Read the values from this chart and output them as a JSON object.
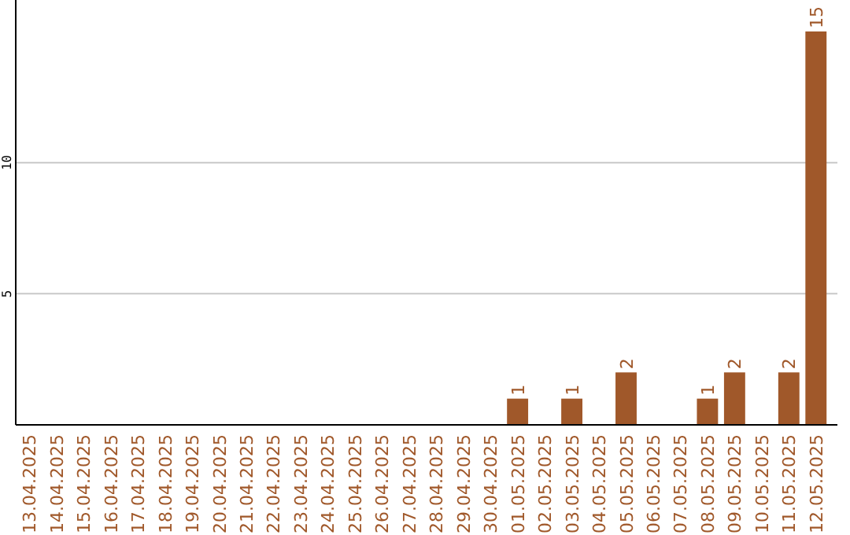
{
  "chart_data": {
    "type": "bar",
    "categories": [
      "13.04.2025",
      "14.04.2025",
      "15.04.2025",
      "16.04.2025",
      "17.04.2025",
      "18.04.2025",
      "19.04.2025",
      "20.04.2025",
      "21.04.2025",
      "22.04.2025",
      "23.04.2025",
      "24.04.2025",
      "25.04.2025",
      "26.04.2025",
      "27.04.2025",
      "28.04.2025",
      "29.04.2025",
      "30.04.2025",
      "01.05.2025",
      "02.05.2025",
      "03.05.2025",
      "04.05.2025",
      "05.05.2025",
      "06.05.2025",
      "07.05.2025",
      "08.05.2025",
      "09.05.2025",
      "10.05.2025",
      "11.05.2025",
      "12.05.2025"
    ],
    "values": [
      0,
      0,
      0,
      0,
      0,
      0,
      0,
      0,
      0,
      0,
      0,
      0,
      0,
      0,
      0,
      0,
      0,
      0,
      1,
      0,
      1,
      0,
      2,
      0,
      0,
      1,
      2,
      0,
      2,
      15
    ],
    "value_labels": [
      null,
      null,
      null,
      null,
      null,
      null,
      null,
      null,
      null,
      null,
      null,
      null,
      null,
      null,
      null,
      null,
      null,
      null,
      "1",
      null,
      "1",
      null,
      "2",
      null,
      null,
      "1",
      "2",
      null,
      "2",
      "15"
    ],
    "color": "#a0582a",
    "ylim": [
      0,
      16.2
    ],
    "yticks": [
      5,
      10
    ],
    "grid": "y"
  }
}
